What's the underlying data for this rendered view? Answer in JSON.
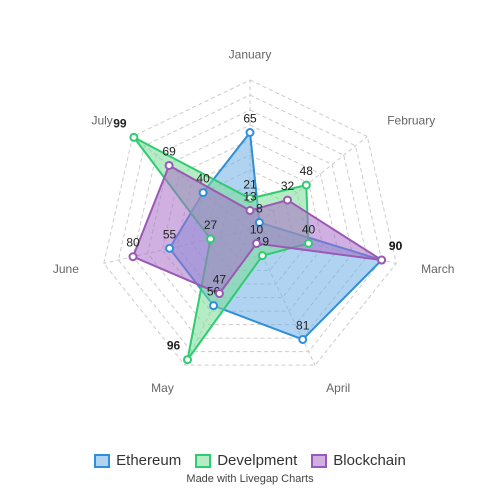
{
  "chart_data": {
    "type": "radar",
    "categories": [
      "January",
      "February",
      "March",
      "April",
      "May",
      "June",
      "July"
    ],
    "rmax": 100,
    "grid": true,
    "series": [
      {
        "name": "Ethereum",
        "values": [
          65,
          8,
          90,
          81,
          56,
          55,
          40
        ],
        "color": "#2f8fd8",
        "fill": "rgba(110,175,230,0.55)"
      },
      {
        "name": "Develpment",
        "values": [
          21,
          48,
          40,
          19,
          96,
          27,
          99
        ],
        "color": "#2ecc71",
        "fill": "rgba(120,220,150,0.55)"
      },
      {
        "name": "Blockchain",
        "values": [
          13,
          32,
          90,
          10,
          47,
          80,
          69
        ],
        "color": "#9b59b6",
        "fill": "rgba(170,110,200,0.55)"
      }
    ],
    "legend": "bottom"
  },
  "footer": {
    "credit": "Made with Livegap Charts"
  }
}
